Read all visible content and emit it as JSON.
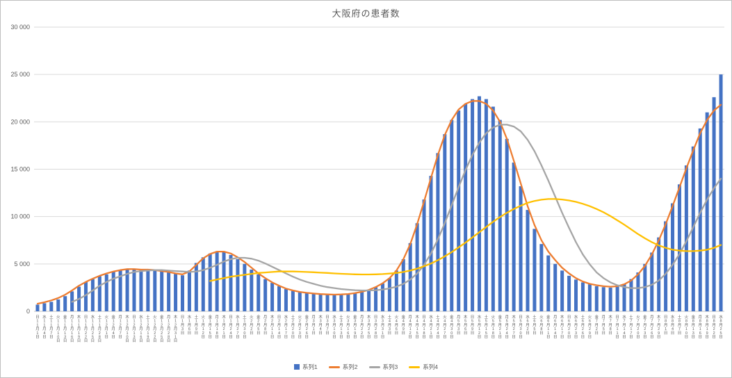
{
  "chart_data": {
    "type": "bar",
    "title": "大阪府の患者数",
    "xlabel": "",
    "ylabel": "",
    "ylim": [
      0,
      30000
    ],
    "y_ticks": [
      0,
      5000,
      10000,
      15000,
      20000,
      25000,
      30000
    ],
    "y_tick_labels": [
      "0",
      "5 000",
      "10 000",
      "15 000",
      "20 000",
      "25 000",
      "30 000"
    ],
    "grid": true,
    "legend_position": "bottom",
    "categories": [
      "日 11月1日",
      "水 11月4日",
      "土 11月7日",
      "火 11月10日",
      "金 11月13日",
      "月 11月16日",
      "木 11月19日",
      "日 11月22日",
      "水 11月25日",
      "土 11月28日",
      "火 12月1日",
      "金 12月4日",
      "月 12月7日",
      "木 12月10日",
      "日 12月13日",
      "水 12月16日",
      "土 12月19日",
      "火 12月22日",
      "金 12月25日",
      "月 12月28日",
      "木 12月31日",
      "日 1月3日",
      "水 1月6日",
      "土 1月9日",
      "火 1月12日",
      "金 1月15日",
      "月 1月18日",
      "木 1月21日",
      "日 1月24日",
      "水 1月27日",
      "土 1月30日",
      "火 2月2日",
      "金 2月5日",
      "月 2月8日",
      "木 2月11日",
      "日 2月14日",
      "水 2月17日",
      "土 2月20日",
      "火 2月23日",
      "金 2月26日",
      "月 3月1日",
      "木 3月4日",
      "日 3月7日",
      "水 3月10日",
      "土 3月13日",
      "火 3月16日",
      "金 3月19日",
      "月 3月22日",
      "木 3月25日",
      "日 3月28日",
      "水 3月31日",
      "土 4月3日",
      "火 4月6日",
      "金 4月9日",
      "月 4月12日",
      "木 4月15日",
      "日 4月18日",
      "水 4月21日",
      "土 4月24日",
      "火 4月27日",
      "金 4月30日",
      "月 5月3日",
      "木 5月6日",
      "日 5月9日",
      "水 5月12日",
      "土 5月15日",
      "火 5月18日",
      "金 5月21日",
      "月 5月24日",
      "木 5月27日",
      "日 5月30日",
      "水 6月2日",
      "土 6月5日",
      "火 6月8日",
      "金 6月11日",
      "月 6月14日",
      "木 6月17日",
      "日 6月20日",
      "水 6月23日",
      "土 6月26日",
      "火 6月29日",
      "金 7月2日",
      "月 7月5日",
      "木 7月8日",
      "日 7月11日",
      "水 7月14日",
      "土 7月17日",
      "火 7月20日",
      "金 7月23日",
      "月 7月26日",
      "木 7月29日",
      "日 8月1日",
      "水 8月4日",
      "土 8月7日",
      "火 8月10日",
      "金 8月13日",
      "月 8月16日",
      "木 8月19日",
      "日 8月22日",
      "水 8月25日"
    ],
    "series": [
      {
        "name": "系列1",
        "type": "bar",
        "color": "#4472C4",
        "values": [
          700,
          850,
          1000,
          1250,
          1600,
          2100,
          2600,
          3100,
          3400,
          3700,
          3900,
          4200,
          4400,
          4500,
          4450,
          4400,
          4450,
          4350,
          4250,
          4100,
          3950,
          3800,
          4300,
          5100,
          5700,
          6100,
          6300,
          6250,
          5950,
          5500,
          5000,
          4400,
          3900,
          3400,
          3000,
          2650,
          2350,
          2150,
          2000,
          1900,
          1850,
          1780,
          1730,
          1720,
          1750,
          1820,
          1920,
          2050,
          2250,
          2550,
          2950,
          3500,
          4300,
          5500,
          7200,
          9300,
          11800,
          14300,
          16700,
          18700,
          20200,
          21200,
          21900,
          22400,
          22700,
          22400,
          21600,
          20200,
          18200,
          15700,
          13200,
          10700,
          8700,
          7100,
          5900,
          5000,
          4300,
          3750,
          3350,
          3050,
          2850,
          2650,
          2550,
          2500,
          2600,
          2900,
          3400,
          4100,
          5000,
          6200,
          7800,
          9500,
          11400,
          13400,
          15400,
          17400,
          19300,
          21000,
          22600,
          25000
        ]
      },
      {
        "name": "系列2",
        "type": "line",
        "color": "#ED7D31",
        "values": [
          800,
          950,
          1150,
          1400,
          1750,
          2200,
          2700,
          3100,
          3450,
          3750,
          4000,
          4200,
          4350,
          4450,
          4450,
          4400,
          4400,
          4350,
          4250,
          4150,
          4000,
          3900,
          4200,
          4900,
          5600,
          6050,
          6300,
          6300,
          6100,
          5700,
          5200,
          4600,
          4000,
          3500,
          3050,
          2700,
          2400,
          2200,
          2050,
          1950,
          1880,
          1820,
          1780,
          1760,
          1780,
          1830,
          1920,
          2060,
          2260,
          2560,
          2960,
          3500,
          4300,
          5500,
          7100,
          9200,
          11600,
          14100,
          16500,
          18600,
          20200,
          21300,
          21900,
          22200,
          22200,
          21900,
          21200,
          20000,
          18200,
          15900,
          13500,
          11100,
          9100,
          7500,
          6300,
          5400,
          4600,
          4000,
          3500,
          3150,
          2900,
          2750,
          2650,
          2600,
          2650,
          2850,
          3250,
          3900,
          4800,
          6000,
          7500,
          9200,
          11100,
          13100,
          15100,
          17000,
          18800,
          20200,
          21200,
          21800
        ]
      },
      {
        "name": "系列3",
        "type": "line",
        "color": "#A5A5A5",
        "values": [
          null,
          null,
          null,
          null,
          null,
          1000,
          1300,
          1700,
          2200,
          2700,
          3100,
          3450,
          3700,
          3950,
          4150,
          4250,
          4300,
          4350,
          4350,
          4300,
          4250,
          4200,
          4150,
          4200,
          4350,
          4600,
          4900,
          5250,
          5500,
          5650,
          5650,
          5550,
          5350,
          5050,
          4700,
          4350,
          4000,
          3650,
          3350,
          3100,
          2900,
          2700,
          2550,
          2450,
          2350,
          2280,
          2230,
          2200,
          2200,
          2230,
          2300,
          2420,
          2600,
          2900,
          3350,
          4000,
          4900,
          6100,
          7600,
          9300,
          11200,
          13100,
          14900,
          16500,
          17800,
          18800,
          19400,
          19700,
          19700,
          19500,
          19000,
          18100,
          16900,
          15400,
          13800,
          12100,
          10400,
          8800,
          7300,
          6000,
          4950,
          4100,
          3500,
          3050,
          2750,
          2550,
          2450,
          2450,
          2550,
          2800,
          3250,
          3950,
          4900,
          6050,
          7400,
          8900,
          10400,
          11800,
          13000,
          14000
        ]
      },
      {
        "name": "系列4",
        "type": "line",
        "color": "#FFC000",
        "values": [
          null,
          null,
          null,
          null,
          null,
          null,
          null,
          null,
          null,
          null,
          null,
          null,
          null,
          null,
          null,
          null,
          null,
          null,
          null,
          null,
          null,
          null,
          null,
          null,
          null,
          3200,
          3350,
          3500,
          3650,
          3750,
          3850,
          3950,
          4050,
          4100,
          4150,
          4200,
          4200,
          4200,
          4180,
          4150,
          4120,
          4080,
          4050,
          4000,
          3960,
          3930,
          3900,
          3890,
          3890,
          3900,
          3930,
          3980,
          4050,
          4150,
          4300,
          4500,
          4750,
          5050,
          5400,
          5800,
          6250,
          6750,
          7250,
          7800,
          8350,
          8900,
          9450,
          9950,
          10400,
          10800,
          11150,
          11450,
          11650,
          11780,
          11850,
          11850,
          11800,
          11700,
          11550,
          11350,
          11100,
          10800,
          10450,
          10050,
          9600,
          9150,
          8650,
          8150,
          7700,
          7300,
          6950,
          6700,
          6500,
          6400,
          6350,
          6350,
          6400,
          6500,
          6700,
          7000
        ]
      }
    ]
  },
  "colors": {
    "gridline": "#D9D9D9",
    "axis_line": "#BFBFBF",
    "axis_text": "#595959"
  }
}
